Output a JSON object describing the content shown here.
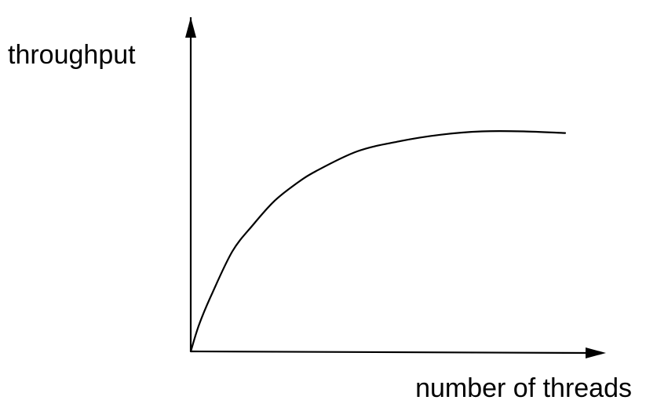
{
  "chart_data": {
    "type": "line",
    "title": "",
    "xlabel": "number of threads",
    "ylabel": "throughput",
    "grid": false,
    "legend": "none",
    "ticks": "none",
    "xlim": [
      0,
      100
    ],
    "ylim": [
      0,
      100
    ],
    "series": [
      {
        "values": [
          {
            "x": 0,
            "y": 0
          },
          {
            "x": 2,
            "y": 8
          },
          {
            "x": 5,
            "y": 17
          },
          {
            "x": 10,
            "y": 30
          },
          {
            "x": 15,
            "y": 38
          },
          {
            "x": 20,
            "y": 45
          },
          {
            "x": 25,
            "y": 50
          },
          {
            "x": 30,
            "y": 54
          },
          {
            "x": 40,
            "y": 60
          },
          {
            "x": 50,
            "y": 63
          },
          {
            "x": 60,
            "y": 65
          },
          {
            "x": 70,
            "y": 66
          },
          {
            "x": 80,
            "y": 66
          },
          {
            "x": 90,
            "y": 65.5
          }
        ]
      }
    ],
    "colors": {
      "line": "#000000",
      "axis": "#000000"
    }
  }
}
